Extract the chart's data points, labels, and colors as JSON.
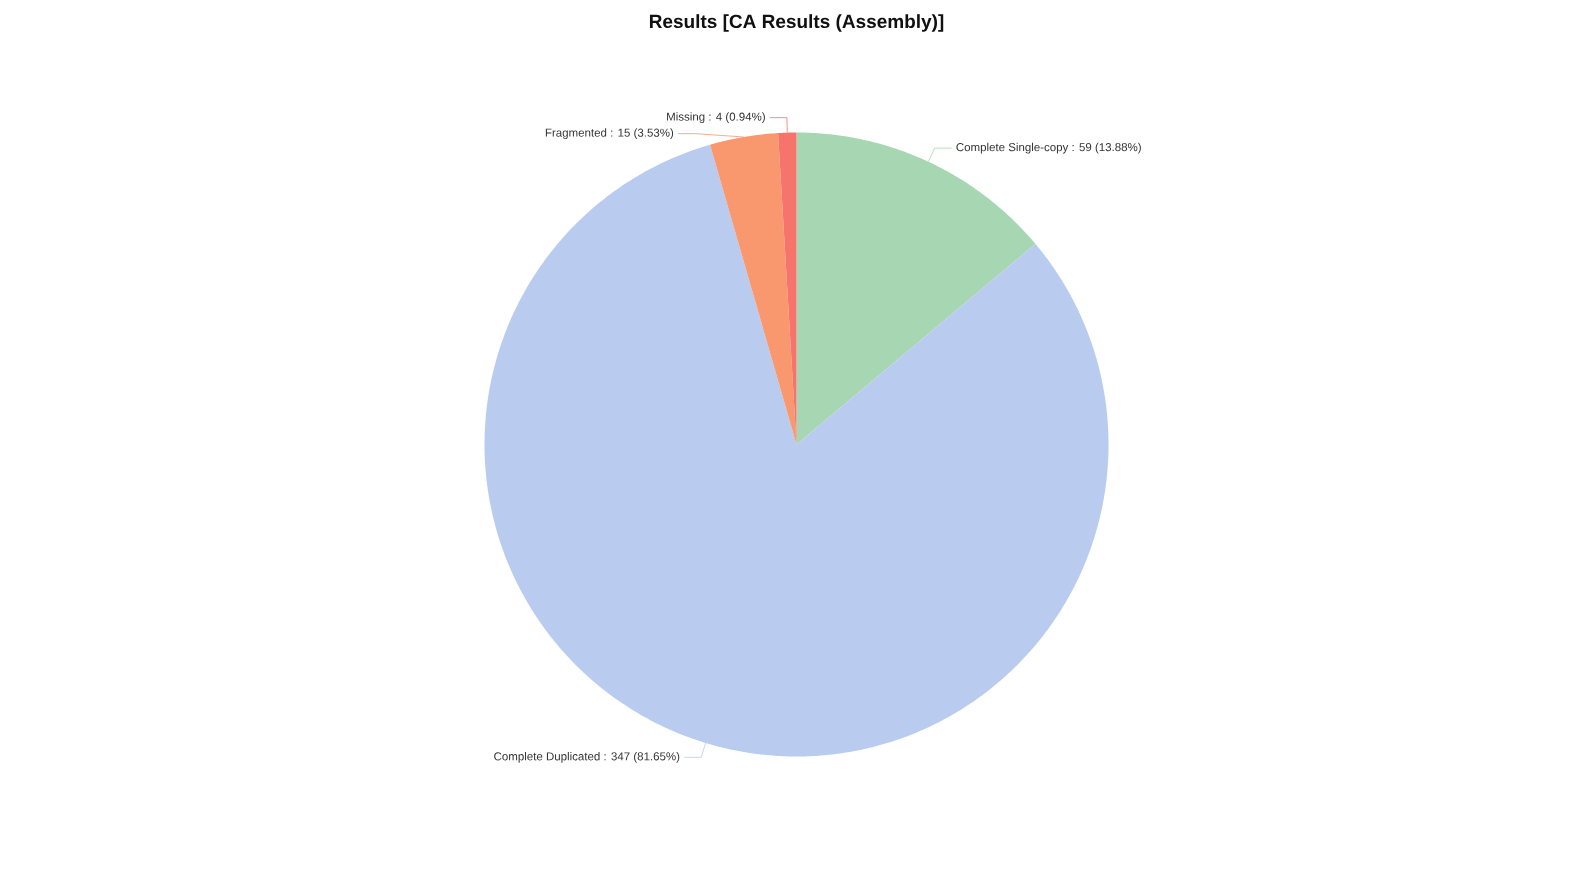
{
  "chart_data": {
    "type": "pie",
    "title": "Results [CA Results (Assembly)]",
    "categories": [
      "Complete Single-copy : 59 (13.88%)",
      "Complete Duplicated : 347 (81.65%)",
      "Fragmented : 15 (3.53%)",
      "Missing : 4 (0.94%)"
    ],
    "values": [
      59,
      347,
      15,
      4
    ],
    "colors": [
      "#a6d7b2",
      "#b9ccef",
      "#f9976f",
      "#f7746c"
    ]
  }
}
